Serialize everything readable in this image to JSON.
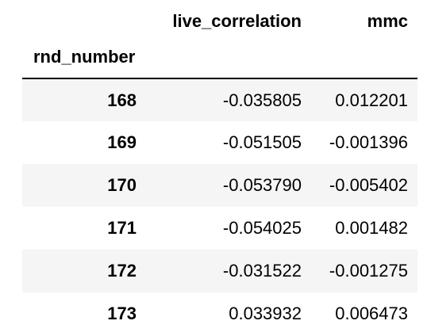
{
  "table": {
    "columns": [
      "live_correlation",
      "mmc"
    ],
    "index_name": "rnd_number",
    "rows": [
      {
        "index": "168",
        "live_correlation": "-0.035805",
        "mmc": "0.012201"
      },
      {
        "index": "169",
        "live_correlation": "-0.051505",
        "mmc": "-0.001396"
      },
      {
        "index": "170",
        "live_correlation": "-0.053790",
        "mmc": "-0.005402"
      },
      {
        "index": "171",
        "live_correlation": "-0.054025",
        "mmc": "0.001482"
      },
      {
        "index": "172",
        "live_correlation": "-0.031522",
        "mmc": "-0.001275"
      },
      {
        "index": "173",
        "live_correlation": "0.033932",
        "mmc": "0.006473"
      }
    ]
  },
  "colors": {
    "stripe": "#f5f5f5",
    "text": "#000000",
    "rule": "#000000"
  }
}
